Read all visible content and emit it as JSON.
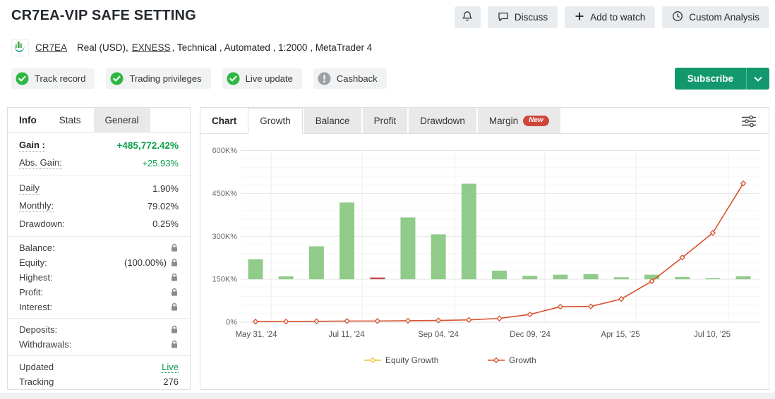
{
  "header": {
    "title": "CR7EA-VIP SAFE SETTING",
    "buttons": {
      "notifications": "",
      "discuss": "Discuss",
      "add_to_watch": "Add to watch",
      "custom_analysis": "Custom Analysis"
    },
    "account_line": {
      "name": "CR7EA",
      "pre_broker": "Real (USD),",
      "broker": "EXNESS",
      "post_broker": ", Technical , Automated , 1:2000 , MetaTrader 4"
    },
    "badges": [
      {
        "label": "Track record",
        "status": "verified"
      },
      {
        "label": "Trading privileges",
        "status": "verified"
      },
      {
        "label": "Live update",
        "status": "verified"
      },
      {
        "label": "Cashback",
        "status": "neutral"
      }
    ],
    "subscribe": {
      "label": "Subscribe"
    }
  },
  "info_panel": {
    "tabs": [
      {
        "label": "Info",
        "state": "title"
      },
      {
        "label": "Stats",
        "state": "plain"
      },
      {
        "label": "General",
        "state": "inactive"
      }
    ],
    "rows": [
      {
        "label": "Gain :",
        "value": "+485,772.42%",
        "label_bold": true,
        "dotted": true,
        "style": "gain"
      },
      {
        "label": "Abs. Gain:",
        "value": "+25.93%",
        "dotted": true,
        "style": "green"
      },
      {
        "label": "Daily",
        "value": "1.90%",
        "dotted": true
      },
      {
        "label": "Monthly:",
        "value": "79.02%",
        "dotted": true
      },
      {
        "label": "Drawdown:",
        "value": "0.25%"
      },
      {
        "label": "Balance:",
        "locked": true
      },
      {
        "label": "Equity:",
        "value": "(100.00%)",
        "locked": true
      },
      {
        "label": "Highest:",
        "locked": true
      },
      {
        "label": "Profit:",
        "locked": true
      },
      {
        "label": "Interest:",
        "locked": true
      },
      {
        "label": "Deposits:",
        "locked": true
      },
      {
        "label": "Withdrawals:",
        "locked": true
      },
      {
        "label": "Updated",
        "value": "Live",
        "style": "live"
      },
      {
        "label": "Tracking",
        "value": "276"
      }
    ]
  },
  "chart_panel": {
    "tabs": [
      {
        "label": "Chart",
        "state": "title"
      },
      {
        "label": "Growth",
        "state": "active"
      },
      {
        "label": "Balance",
        "state": "inactive"
      },
      {
        "label": "Profit",
        "state": "inactive"
      },
      {
        "label": "Drawdown",
        "state": "inactive"
      },
      {
        "label": "Margin",
        "state": "inactive",
        "badge": "New"
      }
    ]
  },
  "chart_data": {
    "type": "combo (bar + line)",
    "title": "Growth",
    "y_axis": {
      "ticks": [
        "0%",
        "150K%",
        "300K%",
        "450K%",
        "600K%"
      ],
      "tick_values_k": [
        0,
        150,
        300,
        450,
        600
      ],
      "range_k": [
        0,
        600
      ],
      "unit": "K%"
    },
    "x_ticks": [
      "May 31, '24",
      "Jul 11, '24",
      "Sep 04, '24",
      "Dec 09, '24",
      "Apr 15, '25",
      "Jul 10, '25"
    ],
    "grid": {
      "horizontal_major": true,
      "horizontal_minor_step_k": 30,
      "vertical": true
    },
    "bars": {
      "name": "periodic growth bars",
      "color": "#90cb8a",
      "baseline_k": 150,
      "tops_k": [
        220,
        160,
        265,
        418,
        null,
        366,
        307,
        484,
        180,
        162,
        166,
        168,
        157,
        166,
        158,
        154,
        160
      ],
      "negative_marker": {
        "index": 4,
        "value_k": 150,
        "color": "#c0504d"
      }
    },
    "line": {
      "name": "Growth",
      "color": "#d9512c",
      "marker": "diamond",
      "values_k": [
        2,
        2,
        3,
        4,
        4,
        5,
        6,
        8,
        13,
        27,
        54,
        55,
        81,
        143,
        226,
        312,
        485
      ]
    },
    "legend": [
      {
        "label": "Equity Growth",
        "color": "#e9c63b"
      },
      {
        "label": "Growth",
        "color": "#d9512c"
      }
    ],
    "legend_position": "bottom-center"
  }
}
